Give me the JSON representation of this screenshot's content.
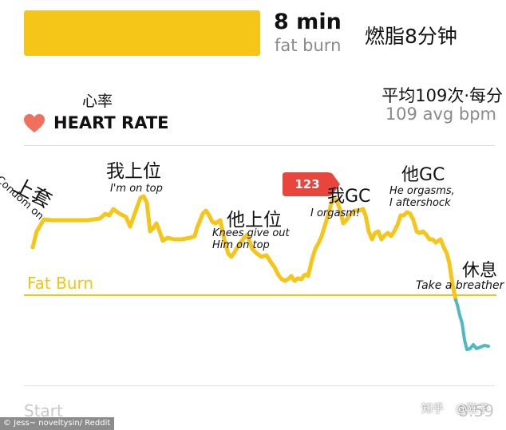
{
  "summary": {
    "minutes": "8 min",
    "zone_label": "fat burn",
    "zone_cn": "燃脂8分钟",
    "zone_color": "#f5c518"
  },
  "heart_rate": {
    "cn_label": "心率",
    "title": "HEART RATE",
    "icon": "heart-icon",
    "icon_color": "#f06f5d",
    "avg_cn": "平均109次·每分",
    "avg_label": "109 avg bpm"
  },
  "chart": {
    "fat_burn_label": "Fat Burn",
    "line_color_zone": "#f5c518",
    "line_color_below": "#4fb9c3",
    "peak_badge": "123",
    "badge_color": "#e8453c",
    "start_label": "Start",
    "end_time": "8:59"
  },
  "annotations": {
    "condom_cn": "上套",
    "condom_en": "Condom on",
    "me_top_cn": "我上位",
    "me_top_en": "I'm on top",
    "him_top_cn": "他上位",
    "him_top_en": "Knees give out\nHim on top",
    "me_gc_cn": "我GC",
    "me_gc_en": "I orgasm!",
    "him_gc_cn": "他GC",
    "him_gc_en": "He orgasms,\nI aftershock",
    "rest_cn": "休息",
    "rest_en": "Take a breather"
  },
  "watermark": {
    "zhihu": "知乎",
    "user": "@陈子",
    "credit": "© Jess~ noveltysin/ Reddit"
  },
  "chart_data": {
    "type": "line",
    "series": [
      {
        "values": [
          [
            41,
            310
          ],
          [
            46,
            290
          ],
          [
            55,
            275
          ],
          [
            65,
            276
          ],
          [
            80,
            276
          ],
          [
            95,
            276
          ],
          [
            110,
            276
          ],
          [
            125,
            274
          ],
          [
            132,
            268
          ],
          [
            137,
            270
          ],
          [
            142,
            262
          ],
          [
            150,
            268
          ],
          [
            158,
            272
          ],
          [
            163,
            284
          ],
          [
            168,
            270
          ],
          [
            173,
            256
          ],
          [
            176,
            248
          ],
          [
            180,
            246
          ],
          [
            184,
            254
          ],
          [
            188,
            290
          ],
          [
            192,
            286
          ],
          [
            196,
            280
          ],
          [
            200,
            290
          ],
          [
            204,
            302
          ],
          [
            210,
            298
          ],
          [
            218,
            300
          ],
          [
            228,
            300
          ],
          [
            238,
            298
          ],
          [
            244,
            296
          ],
          [
            247,
            285
          ],
          [
            250,
            278
          ],
          [
            254,
            268
          ],
          [
            258,
            264
          ],
          [
            262,
            270
          ],
          [
            266,
            278
          ],
          [
            270,
            280
          ],
          [
            276,
            276
          ],
          [
            281,
            300
          ],
          [
            286,
            318
          ],
          [
            290,
            322
          ],
          [
            294,
            316
          ],
          [
            300,
            306
          ],
          [
            306,
            298
          ],
          [
            310,
            294
          ],
          [
            316,
            312
          ],
          [
            322,
            318
          ],
          [
            328,
            322
          ],
          [
            334,
            320
          ],
          [
            339,
            328
          ],
          [
            344,
            335
          ],
          [
            349,
            345
          ],
          [
            353,
            350
          ],
          [
            357,
            352
          ],
          [
            361,
            350
          ],
          [
            365,
            346
          ],
          [
            369,
            352
          ],
          [
            373,
            349
          ],
          [
            378,
            350
          ],
          [
            381,
            345
          ],
          [
            384,
            344
          ],
          [
            386,
            346
          ],
          [
            388,
            338
          ],
          [
            391,
            325
          ],
          [
            395,
            312
          ],
          [
            399,
            305
          ],
          [
            403,
            296
          ],
          [
            407,
            283
          ],
          [
            411,
            270
          ],
          [
            416,
            252
          ],
          [
            421,
            250
          ],
          [
            426,
            262
          ],
          [
            430,
            280
          ],
          [
            434,
            276
          ],
          [
            438,
            270
          ],
          [
            444,
            264
          ],
          [
            450,
            264
          ],
          [
            455,
            262
          ],
          [
            458,
            270
          ],
          [
            462,
            290
          ],
          [
            466,
            300
          ],
          [
            470,
            292
          ],
          [
            474,
            290
          ],
          [
            478,
            300
          ],
          [
            482,
            295
          ],
          [
            486,
            292
          ],
          [
            490,
            296
          ],
          [
            494,
            290
          ],
          [
            498,
            282
          ],
          [
            502,
            270
          ],
          [
            506,
            270
          ],
          [
            510,
            266
          ],
          [
            514,
            268
          ],
          [
            518,
            276
          ],
          [
            522,
            290
          ],
          [
            526,
            292
          ],
          [
            530,
            290
          ],
          [
            534,
            294
          ],
          [
            538,
            300
          ],
          [
            542,
            300
          ],
          [
            546,
            304
          ],
          [
            552,
            300
          ],
          [
            556,
            310
          ],
          [
            560,
            318
          ],
          [
            563,
            330
          ],
          [
            566,
            350
          ],
          [
            568,
            362
          ],
          [
            570,
            370
          ],
          [
            571,
            376
          ]
        ],
        "color": "#f5c518"
      },
      {
        "values": [
          [
            571,
            376
          ],
          [
            573,
            382
          ],
          [
            576,
            395
          ],
          [
            579,
            405
          ],
          [
            582,
            426
          ],
          [
            585,
            438
          ],
          [
            589,
            437
          ],
          [
            593,
            432
          ],
          [
            597,
            437
          ],
          [
            602,
            435
          ],
          [
            607,
            433
          ],
          [
            612,
            434
          ]
        ],
        "color": "#4fb9c3"
      }
    ],
    "fat_burn_threshold_y": 370
  }
}
